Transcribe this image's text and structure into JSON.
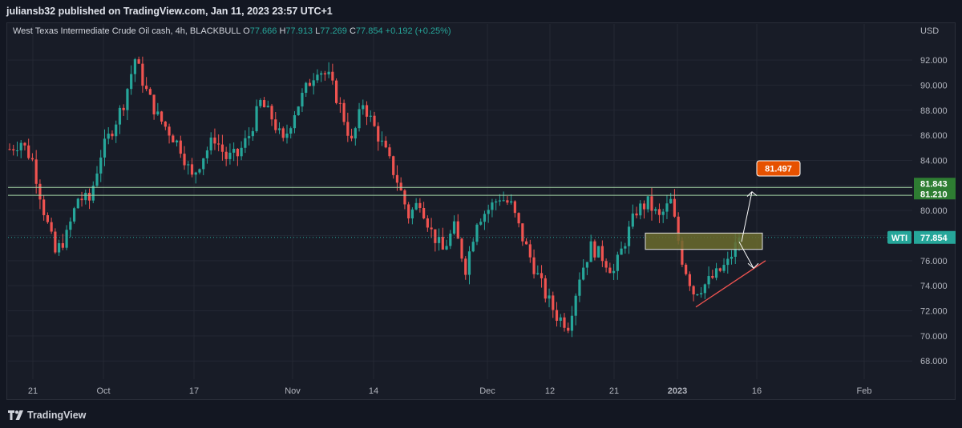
{
  "header": {
    "publisher_text": "juliansb32 published on TradingView.com, Jan 11, 2023 23:57 UTC+1"
  },
  "legend": {
    "instrument": "West Texas Intermediate Crude Oil cash, 4h, BLACKBULL",
    "o_label": "O",
    "o_value": "77.666",
    "h_label": "H",
    "h_value": "77.913",
    "l_label": "L",
    "l_value": "77.269",
    "c_label": "C",
    "c_value": "77.854",
    "change": "+0.192 (+0.25%)"
  },
  "footer": {
    "brand": "TradingView"
  },
  "colors": {
    "up": "#26a69a",
    "down": "#ef5350",
    "level": "#a5d6a7",
    "target": "#e65100",
    "zone": "#6b6b2e"
  },
  "chart_data": {
    "type": "candlestick",
    "y_axis_unit": "USD",
    "ylim": [
      66.8,
      93.6
    ],
    "y_ticks": [
      "92.000",
      "90.000",
      "88.000",
      "86.000",
      "84.000",
      "82.000",
      "80.000",
      "78.000",
      "76.000",
      "74.000",
      "72.000",
      "70.000",
      "68.000"
    ],
    "x_ticks": [
      "21",
      "Oct",
      "17",
      "Nov",
      "14",
      "Dec",
      "12",
      "21",
      "2023",
      "16",
      "Feb"
    ],
    "grid": true,
    "anchors": [
      [
        0,
        84.9
      ],
      [
        3,
        85.5
      ],
      [
        6,
        84.0
      ],
      [
        9,
        80.0
      ],
      [
        12,
        76.6
      ],
      [
        15,
        78.0
      ],
      [
        18,
        81.0
      ],
      [
        21,
        80.8
      ],
      [
        24,
        84.5
      ],
      [
        27,
        86.5
      ],
      [
        30,
        88.6
      ],
      [
        33,
        92.1
      ],
      [
        36,
        89.5
      ],
      [
        39,
        87.5
      ],
      [
        42,
        86.3
      ],
      [
        45,
        85.0
      ],
      [
        48,
        82.6
      ],
      [
        51,
        84.4
      ],
      [
        54,
        85.8
      ],
      [
        57,
        84.2
      ],
      [
        60,
        84.4
      ],
      [
        63,
        86.0
      ],
      [
        66,
        88.6
      ],
      [
        69,
        87.4
      ],
      [
        72,
        85.4
      ],
      [
        75,
        87.9
      ],
      [
        78,
        89.7
      ],
      [
        81,
        91.4
      ],
      [
        84,
        90.6
      ],
      [
        87,
        88.3
      ],
      [
        90,
        85.4
      ],
      [
        93,
        88.6
      ],
      [
        96,
        86.6
      ],
      [
        99,
        84.6
      ],
      [
        102,
        82.4
      ],
      [
        105,
        79.6
      ],
      [
        108,
        80.8
      ],
      [
        111,
        78.3
      ],
      [
        114,
        76.8
      ],
      [
        117,
        78.6
      ],
      [
        120,
        75.4
      ],
      [
        123,
        79.3
      ],
      [
        126,
        80.1
      ],
      [
        129,
        81.1
      ],
      [
        132,
        80.4
      ],
      [
        135,
        77.8
      ],
      [
        138,
        75.5
      ],
      [
        141,
        73.3
      ],
      [
        144,
        71.6
      ],
      [
        147,
        70.9
      ],
      [
        150,
        74.8
      ],
      [
        153,
        77.1
      ],
      [
        156,
        76.3
      ],
      [
        159,
        75.1
      ],
      [
        162,
        77.6
      ],
      [
        165,
        80.0
      ],
      [
        168,
        80.6
      ],
      [
        171,
        79.4
      ],
      [
        174,
        80.7
      ],
      [
        177,
        76.1
      ],
      [
        180,
        73.5
      ],
      [
        183,
        74.1
      ],
      [
        186,
        74.9
      ],
      [
        189,
        75.8
      ],
      [
        192,
        77.854
      ]
    ],
    "horizontal_levels": [
      81.843,
      81.21
    ],
    "last_price": {
      "label": "WTI",
      "value": "77.854"
    },
    "level_labels": [
      "81.843",
      "81.210"
    ],
    "target_label": "81.497",
    "zone": {
      "top": 78.2,
      "bottom": 76.9
    },
    "projection": {
      "start": 77.5,
      "down_to": 75.4,
      "up_to": 81.5
    },
    "trendline": {
      "from": 72.3,
      "to": 76.0
    }
  }
}
